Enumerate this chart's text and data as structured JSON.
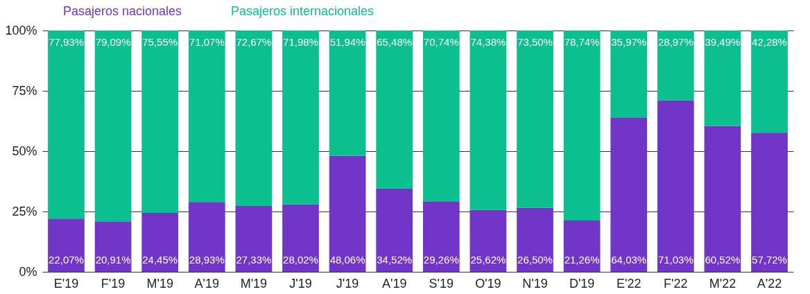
{
  "chart_data": {
    "type": "bar",
    "stacked": true,
    "categories": [
      "E'19",
      "F'19",
      "M'19",
      "A'19",
      "M'19",
      "J'19",
      "J'19",
      "A'19",
      "S'19",
      "O'19",
      "N'19",
      "D'19",
      "E'22",
      "F'22",
      "M'22",
      "A'22"
    ],
    "series": [
      {
        "name": "Pasajeros nacionales",
        "color": "#7135c8",
        "values": [
          22.07,
          20.91,
          24.45,
          28.93,
          27.33,
          28.02,
          48.06,
          34.52,
          29.26,
          25.62,
          26.5,
          21.26,
          64.03,
          71.03,
          60.52,
          57.72
        ],
        "value_labels": [
          "22,07%",
          "20,91%",
          "24,45%",
          "28,93%",
          "27,33%",
          "28,02%",
          "48,06%",
          "34,52%",
          "29,26%",
          "25,62%",
          "26,50%",
          "21,26%",
          "64,03%",
          "71,03%",
          "60,52%",
          "57,72%"
        ]
      },
      {
        "name": "Pasajeros internacionales",
        "color": "#0bbf8f",
        "values": [
          77.93,
          79.09,
          75.55,
          71.07,
          72.67,
          71.98,
          51.94,
          65.48,
          70.74,
          74.38,
          73.5,
          78.74,
          35.97,
          28.97,
          39.49,
          42.28
        ],
        "value_labels": [
          "77,93%",
          "79,09%",
          "75,55%",
          "71,07%",
          "72,67%",
          "71,98%",
          "51,94%",
          "65,48%",
          "70,74%",
          "74,38%",
          "73,50%",
          "78,74%",
          "35,97%",
          "28,97%",
          "39,49%",
          "42,28%"
        ]
      }
    ],
    "ylim": [
      0,
      100
    ],
    "yticks": [
      {
        "value": 0,
        "label": "0%"
      },
      {
        "value": 25,
        "label": "25%"
      },
      {
        "value": 50,
        "label": "50%"
      },
      {
        "value": 75,
        "label": "75%"
      },
      {
        "value": 100,
        "label": "100%"
      }
    ],
    "grid": "y",
    "legend": "top"
  }
}
